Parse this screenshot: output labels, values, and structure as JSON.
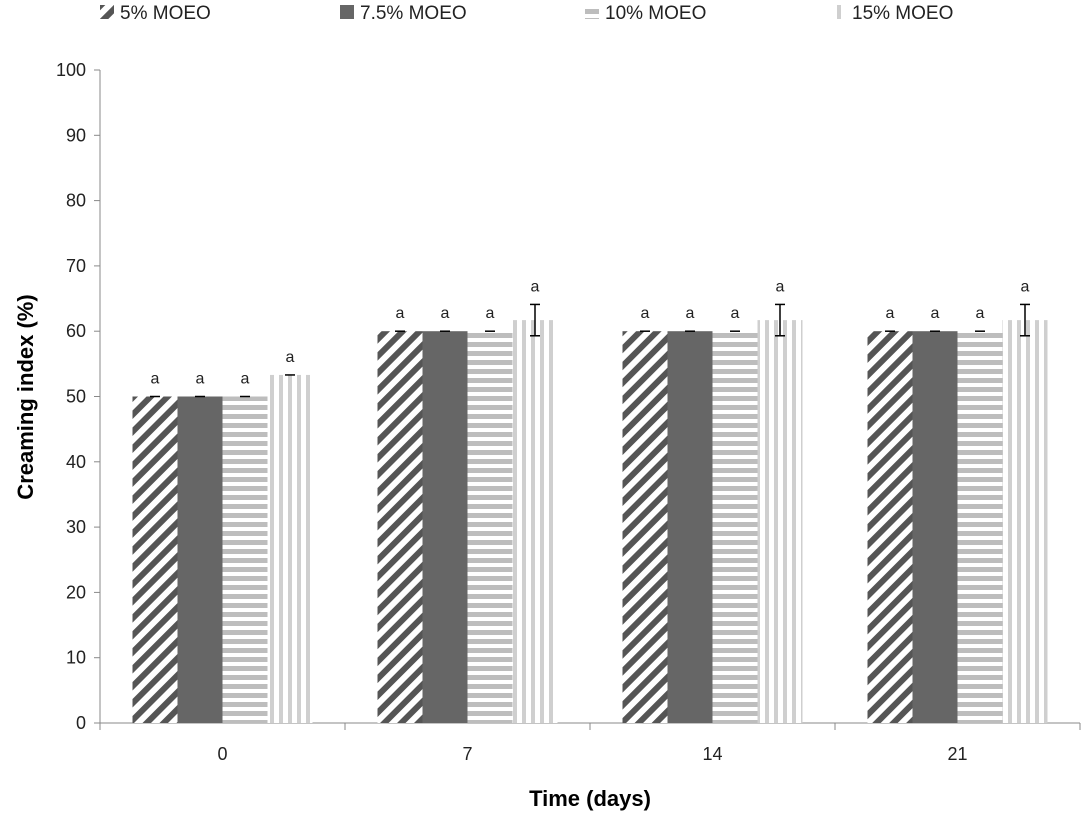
{
  "chart_data": {
    "type": "bar",
    "title": "",
    "xlabel": "Time (days)",
    "ylabel": "Creaming index  (%)",
    "categories": [
      "0",
      "7",
      "14",
      "21"
    ],
    "ylim": [
      0,
      100
    ],
    "yticks": [
      0,
      10,
      20,
      30,
      40,
      50,
      60,
      70,
      80,
      90,
      100
    ],
    "legend_position": "top",
    "series": [
      {
        "name": "5% MOEO",
        "pattern": "diagonal",
        "color": "#555555",
        "values": [
          50,
          60,
          60,
          60
        ],
        "errors": [
          0,
          0,
          0,
          0
        ],
        "labels": [
          "a",
          "a",
          "a",
          "a"
        ]
      },
      {
        "name": "7.5% MOEO",
        "pattern": "solid",
        "color": "#666666",
        "values": [
          50,
          60,
          60,
          60
        ],
        "errors": [
          0,
          0,
          0,
          0
        ],
        "labels": [
          "a",
          "a",
          "a",
          "a"
        ]
      },
      {
        "name": "10% MOEO",
        "pattern": "horizontal",
        "color": "#bdbdbd",
        "values": [
          50,
          60,
          60,
          60
        ],
        "errors": [
          0,
          0,
          0,
          0
        ],
        "labels": [
          "a",
          "a",
          "a",
          "a"
        ]
      },
      {
        "name": "15% MOEO",
        "pattern": "vertical",
        "color": "#cfcfcf",
        "values": [
          53.3,
          61.7,
          61.7,
          61.7
        ],
        "errors": [
          0,
          2.4,
          2.4,
          2.4
        ],
        "labels": [
          "a",
          "a",
          "a",
          "a"
        ]
      }
    ]
  }
}
